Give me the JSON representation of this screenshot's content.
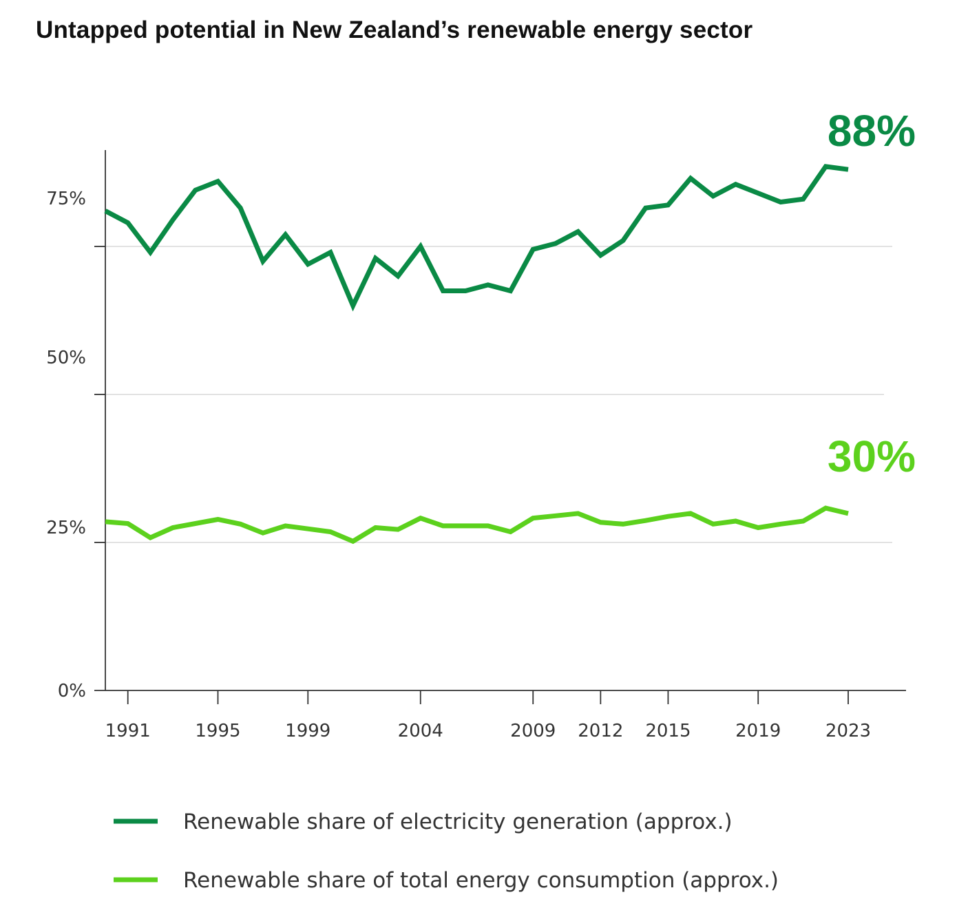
{
  "chart_data": {
    "type": "line",
    "title": "Untapped potential in New Zealand’s renewable energy sector",
    "xlabel": "",
    "ylabel": "",
    "ylim": [
      0,
      92
    ],
    "grid": true,
    "legend_position": "bottom",
    "x_tick_labels": [
      "1991",
      "1995",
      "1999",
      "2004",
      "2009",
      "2012",
      "2015",
      "2019",
      "2023"
    ],
    "y_tick_labels": [
      "0%",
      "25%",
      "50%",
      "75%"
    ],
    "x": [
      1990,
      1991,
      1992,
      1993,
      1994,
      1995,
      1996,
      1997,
      1998,
      1999,
      2000,
      2001,
      2002,
      2003,
      2004,
      2005,
      2006,
      2007,
      2008,
      2009,
      2010,
      2011,
      2012,
      2013,
      2014,
      2015,
      2016,
      2017,
      2018,
      2019,
      2020,
      2021,
      2022,
      2023
    ],
    "series": [
      {
        "name": "Renewable share of electricity generation (approx.)",
        "color": "#0a8a45",
        "end_label": "88%",
        "values": [
          81,
          79,
          74,
          79.5,
          84.5,
          86,
          81.5,
          72.5,
          77,
          72,
          74,
          65,
          73,
          70,
          75,
          67.5,
          67.5,
          68.5,
          67.5,
          74.5,
          75.5,
          77.5,
          73.5,
          76,
          81.5,
          82,
          86.5,
          83.5,
          85.5,
          84,
          82.5,
          83,
          88.5,
          88
        ]
      },
      {
        "name": "Renewable share of total energy consumption (approx.)",
        "color": "#5cd11d",
        "end_label": "30%",
        "values": [
          28.5,
          28.2,
          25.8,
          27.5,
          28.2,
          28.9,
          28.1,
          26.6,
          27.8,
          27.3,
          26.8,
          25.2,
          27.5,
          27.2,
          29.1,
          27.8,
          27.8,
          27.8,
          26.8,
          29.1,
          29.5,
          29.9,
          28.4,
          28.1,
          28.7,
          29.4,
          29.9,
          28.1,
          28.6,
          27.5,
          28.1,
          28.6,
          30.8,
          29.9
        ]
      }
    ]
  }
}
